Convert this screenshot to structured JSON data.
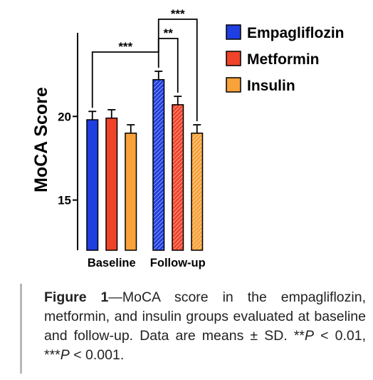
{
  "chart_data": {
    "type": "bar",
    "title": "",
    "xlabel": "",
    "ylabel": "MoCA Score",
    "ylim": [
      12,
      25
    ],
    "y_ticks": [
      15,
      20
    ],
    "grid": false,
    "legend_placement": "top-right",
    "categories": [
      "Baseline",
      "Follow-up"
    ],
    "series": [
      {
        "name": "Empagliflozin",
        "color": "#1f3fe0",
        "values": [
          19.8,
          22.2
        ],
        "errors": [
          0.5,
          0.5
        ]
      },
      {
        "name": "Metformin",
        "color": "#f0442a",
        "values": [
          19.9,
          20.7
        ],
        "errors": [
          0.5,
          0.5
        ]
      },
      {
        "name": "Insulin",
        "color": "#f7a23a",
        "values": [
          19.0,
          19.0
        ],
        "errors": [
          0.5,
          0.5
        ]
      }
    ],
    "followup_bar_pattern": "hatched",
    "significance": [
      {
        "label": "***",
        "from": "Baseline Empagliflozin",
        "to": "Follow-up Empagliflozin"
      },
      {
        "label": "**",
        "from": "Follow-up Empagliflozin",
        "to": "Follow-up Metformin"
      },
      {
        "label": "***",
        "from": "Follow-up Empagliflozin",
        "to": "Follow-up Insulin"
      }
    ]
  },
  "caption": {
    "label": "Figure 1",
    "text_1": "—MoCA score in the empagliflozin, metformin, and insulin groups evaluated at baseline and follow-up. Data are means ± SD. **",
    "p1": "P",
    "text_2": " < 0.01, ***",
    "p2": "P",
    "text_3": " < 0.001."
  }
}
